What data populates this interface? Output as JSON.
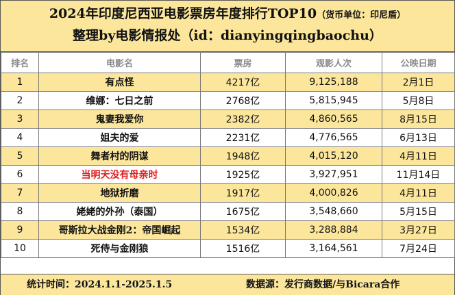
{
  "header": {
    "title": "2024年印度尼西亚电影票房年度排行TOP10",
    "currency_note": "（货币单位：印尼盾）",
    "subtitle": "整理by电影情报处（id：dianyingqingbaochu）"
  },
  "columns": {
    "rank": "排名",
    "movie": "电影名",
    "box_office": "票房",
    "admissions": "观影人次",
    "release_date": "公映日期"
  },
  "rows": [
    {
      "rank": "1",
      "title": "有点怪",
      "box_office": "4217亿",
      "admissions": "9,125,188",
      "release_date": "2月1日"
    },
    {
      "rank": "2",
      "title": "维娜：七日之前",
      "box_office": "2768亿",
      "admissions": "5,815,945",
      "release_date": "5月8日"
    },
    {
      "rank": "3",
      "title": "鬼妻我爱你",
      "box_office": "2382亿",
      "admissions": "4,860,565",
      "release_date": "8月15日"
    },
    {
      "rank": "4",
      "title": "姐夫的爱",
      "box_office": "2231亿",
      "admissions": "4,776,565",
      "release_date": "6月13日"
    },
    {
      "rank": "5",
      "title": "舞者村的阴谋",
      "box_office": "1948亿",
      "admissions": "4,015,120",
      "release_date": "4月11日"
    },
    {
      "rank": "6",
      "title": "当明天没有母亲时",
      "box_office": "1925亿",
      "admissions": "3,927,951",
      "release_date": "11月14日"
    },
    {
      "rank": "7",
      "title": "地狱折磨",
      "box_office": "1917亿",
      "admissions": "4,000,826",
      "release_date": "4月11日"
    },
    {
      "rank": "8",
      "title": "姥姥的外孙（泰国）",
      "box_office": "1675亿",
      "admissions": "3,548,660",
      "release_date": "5月15日"
    },
    {
      "rank": "9",
      "title": "哥斯拉大战金刚2：帝国崛起",
      "box_office": "1534亿",
      "admissions": "3,288,884",
      "release_date": "3月27日"
    },
    {
      "rank": "10",
      "title": "死侍与金刚狼",
      "box_office": "1516亿",
      "admissions": "3,164,561",
      "release_date": "7月24日"
    }
  ],
  "footer": {
    "stats_period": "统计时间：2024.1.1-2025.1.5",
    "data_source": "数据源：发行商数据/与Bicara合作"
  },
  "colors": {
    "band": "#fbe69c",
    "highlight_title": "#e02020",
    "header_text": "#8a8a8a"
  }
}
